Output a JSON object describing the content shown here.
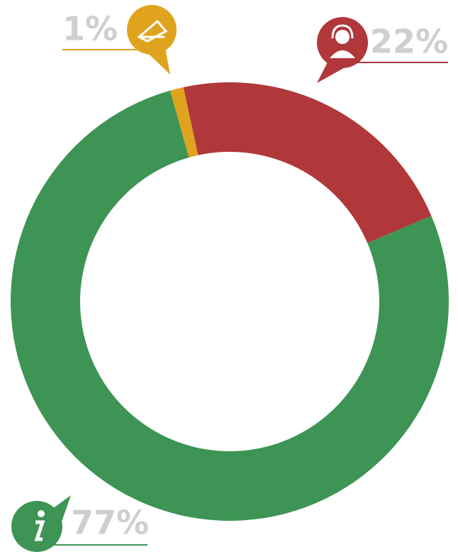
{
  "chart_data": {
    "type": "donut",
    "values": [
      1,
      22,
      77
    ],
    "value_labels": [
      "1%",
      "22%",
      "77%"
    ],
    "colors": [
      "#e0a31e",
      "#b0373a",
      "#3d9454"
    ]
  }
}
